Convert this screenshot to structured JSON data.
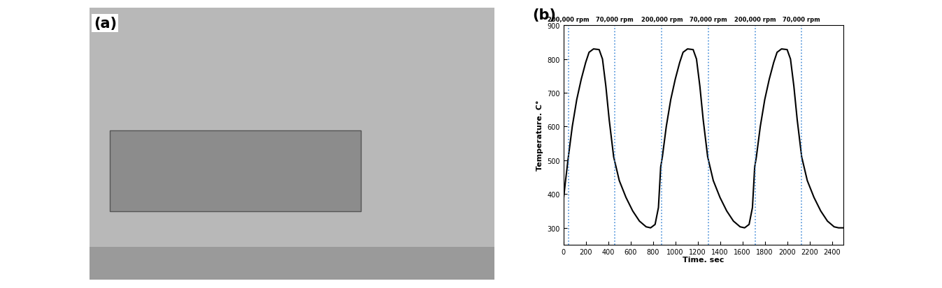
{
  "photo": {
    "label": "(a)"
  },
  "chart_data": {
    "type": "line",
    "label": "(b)",
    "x_label": "Time. sec",
    "y_label": "Temperature. C°",
    "x": [
      0,
      20,
      45,
      80,
      120,
      160,
      200,
      230,
      270,
      320,
      350,
      380,
      410,
      450,
      500,
      560,
      620,
      680,
      740,
      780,
      820,
      850,
      870,
      885,
      920,
      960,
      1000,
      1040,
      1070,
      1110,
      1160,
      1190,
      1220,
      1250,
      1290,
      1340,
      1400,
      1460,
      1520,
      1580,
      1620,
      1660,
      1690,
      1710,
      1725,
      1760,
      1800,
      1840,
      1880,
      1910,
      1950,
      2000,
      2030,
      2060,
      2090,
      2130,
      2180,
      2240,
      2300,
      2360,
      2420,
      2460,
      2500
    ],
    "values": [
      380,
      440,
      510,
      600,
      680,
      740,
      790,
      820,
      830,
      828,
      800,
      720,
      620,
      510,
      440,
      390,
      350,
      320,
      303,
      300,
      310,
      360,
      480,
      510,
      600,
      680,
      740,
      790,
      820,
      830,
      828,
      800,
      720,
      620,
      510,
      440,
      390,
      350,
      320,
      303,
      300,
      310,
      360,
      480,
      510,
      600,
      680,
      740,
      790,
      820,
      830,
      828,
      800,
      720,
      620,
      510,
      440,
      390,
      350,
      320,
      303,
      300,
      300
    ],
    "color": "#000000",
    "xlim": [
      0,
      2500
    ],
    "xticks": [
      0,
      200,
      400,
      600,
      800,
      1000,
      1200,
      1400,
      1600,
      1800,
      2000,
      2200,
      2400
    ],
    "ylim": [
      250,
      900
    ],
    "yticks": [
      300,
      400,
      500,
      600,
      700,
      800,
      900
    ],
    "markers": [
      {
        "x": 45,
        "label": "200,000 rpm"
      },
      {
        "x": 460,
        "label": "70,000 rpm"
      },
      {
        "x": 880,
        "label": "200,000 rpm"
      },
      {
        "x": 1295,
        "label": "70,000 rpm"
      },
      {
        "x": 1715,
        "label": "200,000 rpm"
      },
      {
        "x": 2130,
        "label": "70,000 rpm"
      }
    ],
    "marker_color": "#4a90d9"
  }
}
